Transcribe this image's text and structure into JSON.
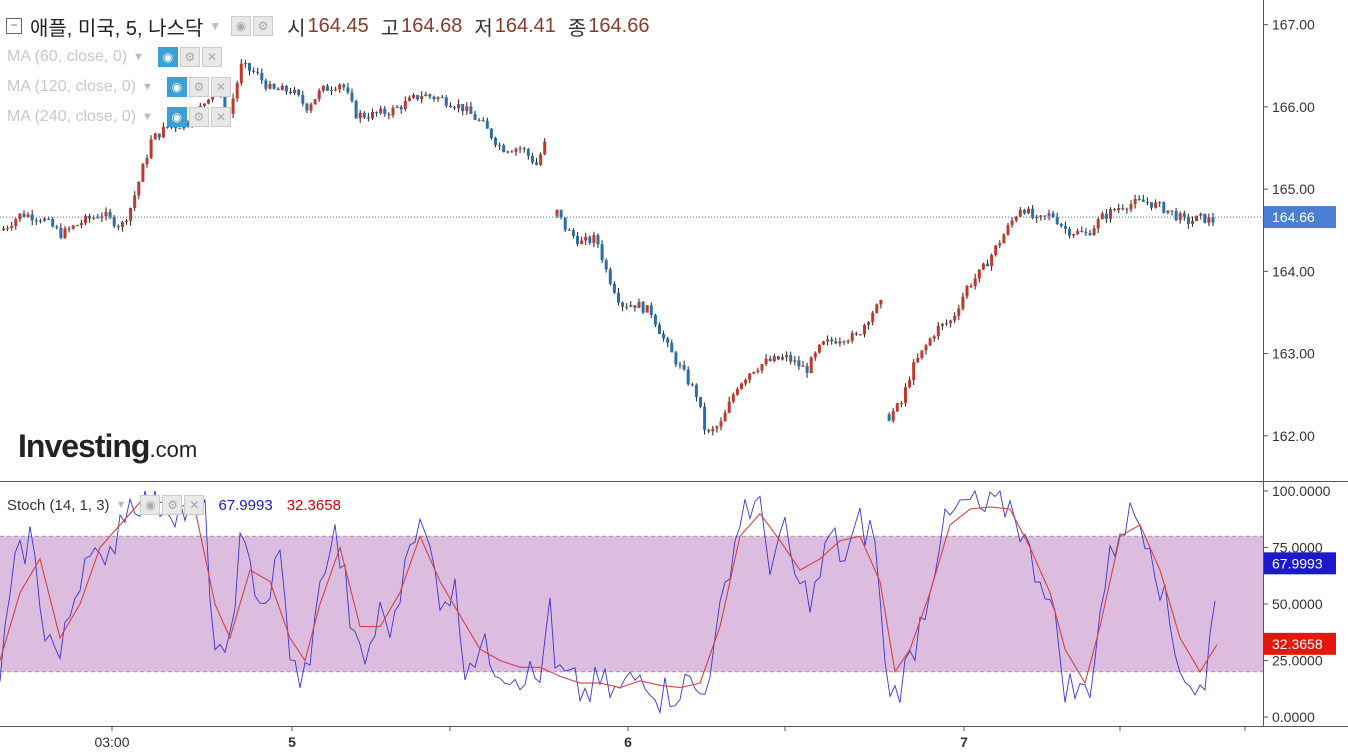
{
  "header": {
    "symbol": "애플, 미국, 5, 나스닥",
    "open_label": "시",
    "open": "164.45",
    "high_label": "고",
    "high": "164.68",
    "low_label": "저",
    "low": "164.41",
    "close_label": "종",
    "close": "164.66"
  },
  "indicators": [
    {
      "label": "MA (60, close, 0)"
    },
    {
      "label": "MA (120, close, 0)"
    },
    {
      "label": "MA (240, close, 0)"
    }
  ],
  "stoch": {
    "label": "Stoch (14, 1, 3)",
    "k_value": "67.9993",
    "d_value": "32.3658",
    "k_color": "#1a1acc",
    "d_color": "#cc0000"
  },
  "logo": {
    "main": "Investing",
    "suffix": ".com"
  },
  "colors": {
    "up": "#c0392b",
    "down": "#2a6fa8",
    "stoch_band": "#dcbde0",
    "price_badge": "#4a7fd4",
    "k_badge": "#1a1acc",
    "d_badge": "#e3170a"
  },
  "chart_data": {
    "type": "candlestick",
    "price_axis": {
      "ylim": [
        161.45,
        167.3
      ],
      "ticks": [
        "162.00",
        "163.00",
        "164.00",
        "165.00",
        "166.00",
        "167.00"
      ]
    },
    "last_price": "164.66",
    "x_tick_labels": [
      "03:00",
      "5",
      "6",
      "7"
    ],
    "price_path": [
      [
        0,
        164.5
      ],
      [
        20,
        164.7
      ],
      [
        40,
        164.65
      ],
      [
        60,
        164.45
      ],
      [
        80,
        164.6
      ],
      [
        100,
        164.7
      ],
      [
        120,
        164.55
      ],
      [
        130,
        164.8
      ],
      [
        140,
        165.2
      ],
      [
        150,
        165.6
      ],
      [
        165,
        165.75
      ],
      [
        185,
        165.8
      ],
      [
        200,
        166.0
      ],
      [
        215,
        166.3
      ],
      [
        225,
        165.8
      ],
      [
        240,
        166.5
      ],
      [
        255,
        166.4
      ],
      [
        270,
        166.2
      ],
      [
        290,
        166.2
      ],
      [
        305,
        166.0
      ],
      [
        320,
        166.2
      ],
      [
        340,
        166.3
      ],
      [
        355,
        165.9
      ],
      [
        370,
        165.9
      ],
      [
        390,
        165.95
      ],
      [
        405,
        166.05
      ],
      [
        420,
        166.15
      ],
      [
        440,
        166.1
      ],
      [
        460,
        166.0
      ],
      [
        480,
        165.8
      ],
      [
        500,
        165.5
      ],
      [
        520,
        165.5
      ],
      [
        535,
        165.3
      ],
      [
        545,
        165.6
      ],
      [
        552,
        164.8
      ],
      [
        565,
        164.5
      ],
      [
        580,
        164.35
      ],
      [
        595,
        164.4
      ],
      [
        605,
        164.0
      ],
      [
        620,
        163.6
      ],
      [
        635,
        163.6
      ],
      [
        650,
        163.5
      ],
      [
        665,
        163.1
      ],
      [
        680,
        162.8
      ],
      [
        695,
        162.5
      ],
      [
        705,
        162.0
      ],
      [
        720,
        162.15
      ],
      [
        735,
        162.6
      ],
      [
        750,
        162.8
      ],
      [
        765,
        162.9
      ],
      [
        785,
        162.95
      ],
      [
        805,
        162.8
      ],
      [
        820,
        163.1
      ],
      [
        840,
        163.2
      ],
      [
        855,
        163.2
      ],
      [
        870,
        163.5
      ],
      [
        880,
        163.6
      ],
      [
        885,
        162.2
      ],
      [
        900,
        162.4
      ],
      [
        910,
        162.8
      ],
      [
        920,
        163.0
      ],
      [
        935,
        163.3
      ],
      [
        950,
        163.4
      ],
      [
        965,
        163.8
      ],
      [
        980,
        164.0
      ],
      [
        995,
        164.3
      ],
      [
        1010,
        164.6
      ],
      [
        1020,
        164.8
      ],
      [
        1035,
        164.6
      ],
      [
        1050,
        164.7
      ],
      [
        1065,
        164.5
      ],
      [
        1085,
        164.45
      ],
      [
        1100,
        164.65
      ],
      [
        1120,
        164.8
      ],
      [
        1145,
        164.85
      ],
      [
        1165,
        164.75
      ],
      [
        1185,
        164.6
      ],
      [
        1200,
        164.65
      ],
      [
        1215,
        164.6
      ]
    ],
    "gaps": [
      [
        545,
        552
      ],
      [
        880,
        885
      ]
    ],
    "stoch_axis": {
      "ylim": [
        -4,
        104
      ],
      "ticks": [
        "0.0000",
        "25.0000",
        "50.0000",
        "75.0000",
        "100.0000"
      ],
      "band": [
        20,
        80
      ]
    },
    "stoch_k_path": [
      [
        0,
        20
      ],
      [
        15,
        65
      ],
      [
        30,
        80
      ],
      [
        45,
        40
      ],
      [
        60,
        25
      ],
      [
        75,
        55
      ],
      [
        90,
        80
      ],
      [
        105,
        60
      ],
      [
        120,
        90
      ],
      [
        135,
        97
      ],
      [
        150,
        96
      ],
      [
        170,
        94
      ],
      [
        190,
        90
      ],
      [
        205,
        88
      ],
      [
        215,
        30
      ],
      [
        225,
        20
      ],
      [
        240,
        75
      ],
      [
        255,
        60
      ],
      [
        265,
        50
      ],
      [
        280,
        70
      ],
      [
        290,
        30
      ],
      [
        300,
        10
      ],
      [
        315,
        40
      ],
      [
        325,
        70
      ],
      [
        335,
        80
      ],
      [
        345,
        60
      ],
      [
        355,
        30
      ],
      [
        365,
        25
      ],
      [
        380,
        45
      ],
      [
        395,
        40
      ],
      [
        410,
        85
      ],
      [
        425,
        80
      ],
      [
        440,
        55
      ],
      [
        455,
        55
      ],
      [
        465,
        25
      ],
      [
        480,
        30
      ],
      [
        495,
        25
      ],
      [
        510,
        20
      ],
      [
        525,
        20
      ],
      [
        540,
        15
      ],
      [
        548,
        55
      ],
      [
        555,
        20
      ],
      [
        570,
        15
      ],
      [
        585,
        10
      ],
      [
        600,
        15
      ],
      [
        615,
        10
      ],
      [
        630,
        15
      ],
      [
        645,
        20
      ],
      [
        660,
        10
      ],
      [
        675,
        12
      ],
      [
        690,
        15
      ],
      [
        700,
        10
      ],
      [
        715,
        30
      ],
      [
        730,
        70
      ],
      [
        745,
        95
      ],
      [
        760,
        90
      ],
      [
        770,
        70
      ],
      [
        785,
        80
      ],
      [
        800,
        55
      ],
      [
        815,
        55
      ],
      [
        830,
        80
      ],
      [
        845,
        70
      ],
      [
        860,
        85
      ],
      [
        875,
        80
      ],
      [
        885,
        20
      ],
      [
        895,
        10
      ],
      [
        910,
        25
      ],
      [
        925,
        50
      ],
      [
        940,
        80
      ],
      [
        955,
        90
      ],
      [
        970,
        95
      ],
      [
        985,
        90
      ],
      [
        1000,
        95
      ],
      [
        1015,
        92
      ],
      [
        1030,
        70
      ],
      [
        1045,
        60
      ],
      [
        1055,
        40
      ],
      [
        1065,
        15
      ],
      [
        1080,
        10
      ],
      [
        1090,
        15
      ],
      [
        1105,
        60
      ],
      [
        1120,
        85
      ],
      [
        1135,
        90
      ],
      [
        1150,
        80
      ],
      [
        1165,
        50
      ],
      [
        1175,
        30
      ],
      [
        1190,
        15
      ],
      [
        1205,
        10
      ],
      [
        1217,
        68
      ]
    ],
    "stoch_d_path": [
      [
        0,
        25
      ],
      [
        20,
        55
      ],
      [
        40,
        70
      ],
      [
        60,
        35
      ],
      [
        80,
        50
      ],
      [
        100,
        75
      ],
      [
        120,
        85
      ],
      [
        140,
        95
      ],
      [
        170,
        95
      ],
      [
        195,
        92
      ],
      [
        215,
        50
      ],
      [
        230,
        35
      ],
      [
        250,
        65
      ],
      [
        270,
        60
      ],
      [
        290,
        35
      ],
      [
        305,
        25
      ],
      [
        320,
        50
      ],
      [
        340,
        75
      ],
      [
        360,
        40
      ],
      [
        380,
        40
      ],
      [
        400,
        55
      ],
      [
        420,
        80
      ],
      [
        440,
        60
      ],
      [
        460,
        45
      ],
      [
        480,
        30
      ],
      [
        500,
        25
      ],
      [
        520,
        22
      ],
      [
        540,
        22
      ],
      [
        560,
        18
      ],
      [
        580,
        15
      ],
      [
        600,
        15
      ],
      [
        620,
        13
      ],
      [
        640,
        16
      ],
      [
        660,
        14
      ],
      [
        680,
        13
      ],
      [
        700,
        15
      ],
      [
        720,
        40
      ],
      [
        740,
        80
      ],
      [
        760,
        90
      ],
      [
        780,
        78
      ],
      [
        800,
        65
      ],
      [
        820,
        70
      ],
      [
        840,
        78
      ],
      [
        860,
        80
      ],
      [
        880,
        60
      ],
      [
        895,
        20
      ],
      [
        910,
        30
      ],
      [
        930,
        55
      ],
      [
        950,
        85
      ],
      [
        970,
        92
      ],
      [
        990,
        93
      ],
      [
        1010,
        92
      ],
      [
        1030,
        75
      ],
      [
        1050,
        55
      ],
      [
        1065,
        30
      ],
      [
        1085,
        15
      ],
      [
        1100,
        40
      ],
      [
        1120,
        80
      ],
      [
        1140,
        85
      ],
      [
        1160,
        65
      ],
      [
        1180,
        35
      ],
      [
        1200,
        20
      ],
      [
        1217,
        32
      ]
    ]
  }
}
